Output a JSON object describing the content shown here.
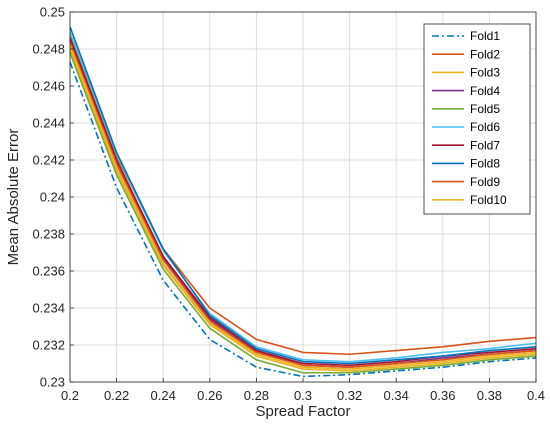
{
  "chart_data": {
    "type": "line",
    "title": "",
    "xlabel": "Spread Factor",
    "ylabel": "Mean Absolute Error",
    "xlim": [
      0.2,
      0.4
    ],
    "ylim": [
      0.23,
      0.25
    ],
    "x_ticks": [
      "0.2",
      "0.22",
      "0.24",
      "0.26",
      "0.28",
      "0.3",
      "0.32",
      "0.34",
      "0.36",
      "0.38",
      "0.4"
    ],
    "y_ticks": [
      "0.23",
      "0.232",
      "0.234",
      "0.236",
      "0.238",
      "0.24",
      "0.242",
      "0.244",
      "0.246",
      "0.248",
      "0.25"
    ],
    "grid": true,
    "legend_position": "top-right",
    "x": [
      0.2,
      0.22,
      0.24,
      0.26,
      0.28,
      0.3,
      0.32,
      0.34,
      0.36,
      0.38,
      0.4
    ],
    "series": [
      {
        "name": "Fold1",
        "color": "#0072BD",
        "dash": "dashdot",
        "values": [
          0.2473,
          0.2405,
          0.2355,
          0.2323,
          0.2308,
          0.2303,
          0.2304,
          0.2306,
          0.2308,
          0.2311,
          0.2313
        ]
      },
      {
        "name": "Fold2",
        "color": "#D95319",
        "dash": "solid",
        "values": [
          0.2488,
          0.2422,
          0.2372,
          0.234,
          0.2323,
          0.2316,
          0.2315,
          0.2317,
          0.2319,
          0.2322,
          0.2324
        ]
      },
      {
        "name": "Fold3",
        "color": "#EDB120",
        "dash": "solid",
        "values": [
          0.248,
          0.2414,
          0.2363,
          0.2331,
          0.2314,
          0.2307,
          0.2306,
          0.2308,
          0.231,
          0.2313,
          0.2315
        ]
      },
      {
        "name": "Fold4",
        "color": "#7E2F8E",
        "dash": "solid",
        "values": [
          0.2485,
          0.2419,
          0.2367,
          0.2334,
          0.2317,
          0.2309,
          0.2308,
          0.231,
          0.2313,
          0.2315,
          0.2317
        ]
      },
      {
        "name": "Fold5",
        "color": "#77AC30",
        "dash": "solid",
        "values": [
          0.2478,
          0.2412,
          0.2361,
          0.2329,
          0.2312,
          0.2305,
          0.2305,
          0.2307,
          0.2309,
          0.2312,
          0.2314
        ]
      },
      {
        "name": "Fold6",
        "color": "#4DBEEE",
        "dash": "solid",
        "values": [
          0.2489,
          0.2423,
          0.2371,
          0.2337,
          0.2319,
          0.2312,
          0.2311,
          0.2313,
          0.2316,
          0.2318,
          0.2321
        ]
      },
      {
        "name": "Fold7",
        "color": "#A2142F",
        "dash": "solid",
        "values": [
          0.2486,
          0.242,
          0.2368,
          0.2335,
          0.2317,
          0.231,
          0.2309,
          0.2311,
          0.2314,
          0.2316,
          0.2318
        ]
      },
      {
        "name": "Fold8",
        "color": "#0072BD",
        "dash": "solid",
        "values": [
          0.2492,
          0.2424,
          0.2372,
          0.2336,
          0.2318,
          0.2311,
          0.231,
          0.2312,
          0.2314,
          0.2317,
          0.2319
        ]
      },
      {
        "name": "Fold9",
        "color": "#D95319",
        "dash": "solid",
        "values": [
          0.2484,
          0.2418,
          0.2366,
          0.2333,
          0.2316,
          0.2309,
          0.2308,
          0.231,
          0.2312,
          0.2315,
          0.2317
        ]
      },
      {
        "name": "Fold10",
        "color": "#EDB120",
        "dash": "solid",
        "values": [
          0.2482,
          0.2416,
          0.2364,
          0.2332,
          0.2315,
          0.2308,
          0.2307,
          0.2309,
          0.2311,
          0.2314,
          0.2316
        ]
      }
    ]
  }
}
